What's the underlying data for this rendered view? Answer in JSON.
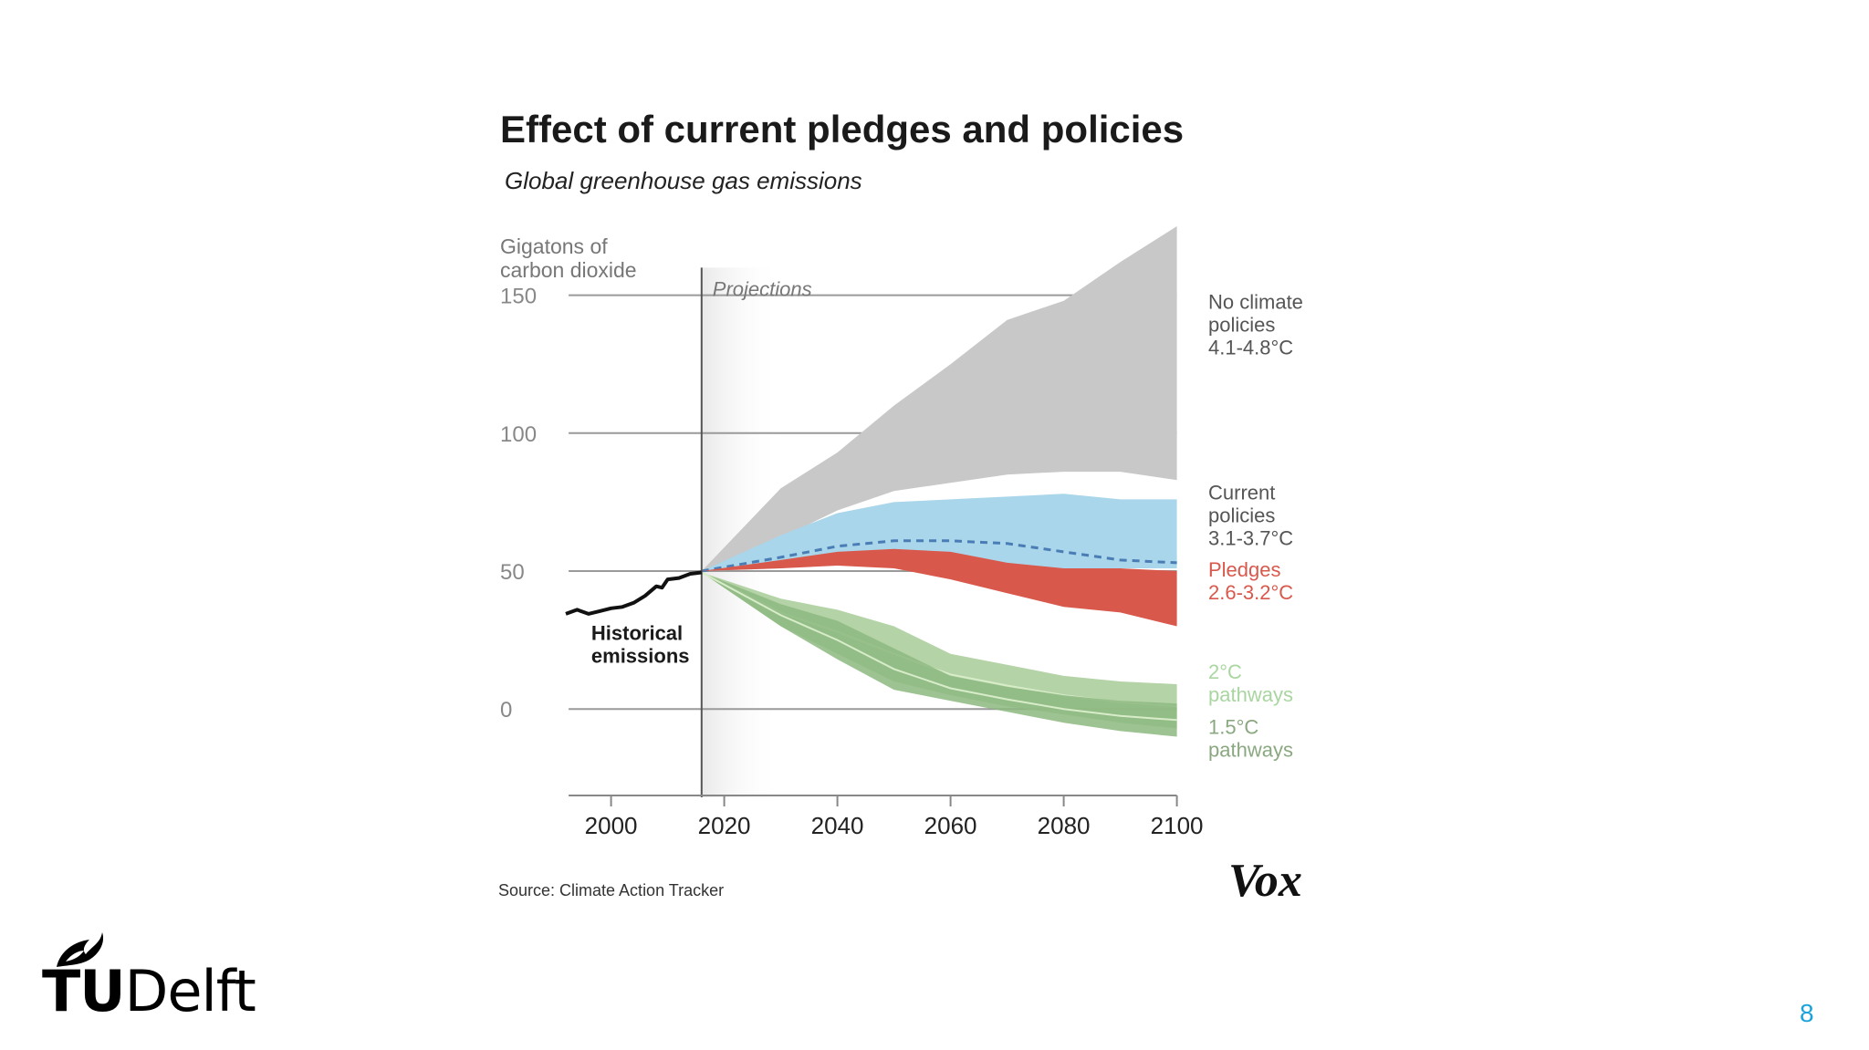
{
  "chart_data": {
    "type": "area",
    "title": "Effect of current pledges and policies",
    "subtitle": "Global greenhouse gas emissions",
    "ylabel_lines": [
      "Gigatons of",
      "carbon dioxide"
    ],
    "yticks": [
      150,
      100,
      50,
      0
    ],
    "xticks": [
      2000,
      2020,
      2040,
      2060,
      2080,
      2100
    ],
    "ylim": [
      -32,
      175
    ],
    "xlim": [
      1992,
      2102
    ],
    "projections_start": 2016,
    "projections_label": "Projections",
    "grid": true,
    "historical": {
      "label_lines": [
        "Historical",
        "emissions"
      ],
      "points": [
        [
          1992,
          34.5
        ],
        [
          1994,
          36
        ],
        [
          1996,
          34.5
        ],
        [
          1998,
          35.5
        ],
        [
          2000,
          36.5
        ],
        [
          2002,
          37
        ],
        [
          2004,
          38.5
        ],
        [
          2006,
          41
        ],
        [
          2008,
          44.5
        ],
        [
          2009,
          44
        ],
        [
          2010,
          47
        ],
        [
          2012,
          47.5
        ],
        [
          2014,
          49
        ],
        [
          2016,
          49.5
        ]
      ]
    },
    "bands": [
      {
        "name_lines": [
          "No climate",
          "policies",
          "4.1-4.8°C"
        ],
        "color": "#c8c8c8",
        "label_color": "#555555",
        "upper": [
          [
            2016,
            50
          ],
          [
            2030,
            80
          ],
          [
            2040,
            93
          ],
          [
            2050,
            110
          ],
          [
            2060,
            125
          ],
          [
            2070,
            141
          ],
          [
            2080,
            148
          ],
          [
            2090,
            162
          ],
          [
            2100,
            175
          ]
        ],
        "lower": [
          [
            2016,
            50
          ],
          [
            2030,
            62
          ],
          [
            2040,
            72
          ],
          [
            2050,
            79
          ],
          [
            2060,
            82
          ],
          [
            2070,
            85
          ],
          [
            2080,
            86
          ],
          [
            2090,
            86
          ],
          [
            2100,
            83
          ]
        ]
      },
      {
        "name_lines": [
          "Current",
          "policies",
          "3.1-3.7°C"
        ],
        "color": "#a9d6ea",
        "label_color": "#555555",
        "upper": [
          [
            2016,
            50
          ],
          [
            2030,
            63
          ],
          [
            2040,
            71
          ],
          [
            2050,
            75
          ],
          [
            2060,
            76
          ],
          [
            2070,
            77
          ],
          [
            2080,
            78
          ],
          [
            2090,
            76
          ],
          [
            2100,
            76
          ]
        ],
        "lower": [
          [
            2016,
            50
          ],
          [
            2030,
            51
          ],
          [
            2040,
            53
          ],
          [
            2050,
            54
          ],
          [
            2060,
            52
          ],
          [
            2070,
            51
          ],
          [
            2080,
            51
          ],
          [
            2090,
            51
          ],
          [
            2100,
            51
          ]
        ],
        "median": [
          [
            2016,
            50
          ],
          [
            2030,
            55
          ],
          [
            2040,
            59
          ],
          [
            2050,
            61
          ],
          [
            2060,
            61
          ],
          [
            2070,
            60
          ],
          [
            2080,
            57
          ],
          [
            2090,
            54
          ],
          [
            2100,
            53
          ]
        ]
      },
      {
        "name_lines": [
          "Pledges",
          "2.6-3.2°C"
        ],
        "color": "#d9584c",
        "label_color": "#d9584c",
        "upper": [
          [
            2016,
            50
          ],
          [
            2030,
            54
          ],
          [
            2040,
            57
          ],
          [
            2050,
            58
          ],
          [
            2060,
            57
          ],
          [
            2070,
            53
          ],
          [
            2080,
            51
          ],
          [
            2090,
            51
          ],
          [
            2100,
            50
          ]
        ],
        "lower": [
          [
            2016,
            50
          ],
          [
            2030,
            51
          ],
          [
            2040,
            52
          ],
          [
            2050,
            51
          ],
          [
            2060,
            47
          ],
          [
            2070,
            42
          ],
          [
            2080,
            37
          ],
          [
            2090,
            35
          ],
          [
            2100,
            30
          ]
        ]
      },
      {
        "name_lines": [
          "2°C",
          "pathways"
        ],
        "color": "#a7cb96",
        "label_color": "#a9d6a0",
        "upper": [
          [
            2016,
            49.5
          ],
          [
            2030,
            40
          ],
          [
            2040,
            36
          ],
          [
            2050,
            30
          ],
          [
            2060,
            20
          ],
          [
            2070,
            16
          ],
          [
            2080,
            12
          ],
          [
            2090,
            10
          ],
          [
            2100,
            9
          ]
        ],
        "lower": [
          [
            2016,
            49.5
          ],
          [
            2030,
            30
          ],
          [
            2040,
            20
          ],
          [
            2050,
            10
          ],
          [
            2060,
            5
          ],
          [
            2070,
            1
          ],
          [
            2080,
            -2
          ],
          [
            2090,
            -5
          ],
          [
            2100,
            -7
          ]
        ]
      },
      {
        "name_lines": [
          "1.5°C",
          "pathways"
        ],
        "color": "#8db880",
        "label_color": "#8aa880",
        "upper": [
          [
            2016,
            49.5
          ],
          [
            2030,
            38
          ],
          [
            2040,
            32
          ],
          [
            2050,
            22
          ],
          [
            2060,
            12
          ],
          [
            2070,
            8
          ],
          [
            2080,
            5
          ],
          [
            2090,
            3
          ],
          [
            2100,
            2
          ]
        ],
        "lower": [
          [
            2016,
            49.5
          ],
          [
            2030,
            30
          ],
          [
            2040,
            18
          ],
          [
            2050,
            7
          ],
          [
            2060,
            3
          ],
          [
            2070,
            -1
          ],
          [
            2080,
            -5
          ],
          [
            2090,
            -8
          ],
          [
            2100,
            -10
          ]
        ]
      }
    ],
    "source": "Source: Climate Action Tracker",
    "brand": "Vox"
  },
  "footer": {
    "logo_text_bold": "TU",
    "logo_text": "Delft",
    "page_number": "8"
  }
}
